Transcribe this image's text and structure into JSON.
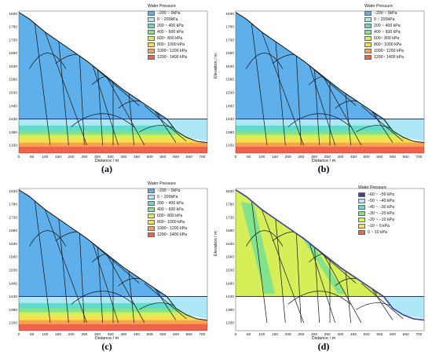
{
  "figure": {
    "panels": [
      {
        "caption": "(a)",
        "legend_title": "Water Pressure",
        "variant": "pressure",
        "xlabel": "Distance / m",
        "ylabel": "Elevation / m"
      },
      {
        "caption": "(b)",
        "legend_title": "Water Pressure",
        "variant": "pressure",
        "xlabel": "Distance / m",
        "ylabel": "Elevation / m"
      },
      {
        "caption": "(c)",
        "legend_title": "Water Pressure",
        "variant": "pressure",
        "xlabel": "Distance / m",
        "ylabel": "Elevation / m"
      },
      {
        "caption": "(d)",
        "legend_title": "Water Pressure",
        "variant": "suction",
        "xlabel": "Distance / m",
        "ylabel": "Elevation / m"
      }
    ]
  },
  "legends": {
    "pressure_abc": [
      {
        "label": "−200 ~ 0kPa",
        "color": "#5fb0ea"
      },
      {
        "label": "0 ~ 200kPa",
        "color": "#aee7f5"
      },
      {
        "label": "200 ~ 400 kPa",
        "color": "#5fdccd"
      },
      {
        "label": "400 ~ 600 kPa",
        "color": "#83e28b"
      },
      {
        "label": "600~ 800 kPa",
        "color": "#d6ee57"
      },
      {
        "label": "800~ 1000 kPa",
        "color": "#f8e04a"
      },
      {
        "label": "1000~ 1200 kPa",
        "color": "#f8a24d"
      },
      {
        "label": "1200~ 1400 kPa",
        "color": "#f0624b"
      }
    ],
    "suction_d": [
      {
        "label": "−60 ~ −50 kPa",
        "color": "#3c3f9e"
      },
      {
        "label": "−50 ~ −40 kPa",
        "color": "#aee7f5"
      },
      {
        "label": "−40 ~ −30 kPa",
        "color": "#5fdccd"
      },
      {
        "label": "−30 ~ −20 kPa",
        "color": "#83e28b"
      },
      {
        "label": "−20 ~ −10 kPa",
        "color": "#d6ee57"
      },
      {
        "label": "−10 ~ 0 kPa",
        "color": "#f8e04a"
      },
      {
        "label": "0 ~ 10 kPa",
        "color": "#f0624b"
      }
    ]
  },
  "axes": {
    "x_ticks": [
      0,
      50,
      100,
      150,
      200,
      250,
      300,
      350,
      400,
      450,
      500,
      550,
      600,
      650,
      700
    ],
    "y_ticks": [
      1330,
      1380,
      1430,
      1480,
      1530,
      1580,
      1630,
      1680,
      1730,
      1780,
      1830
    ],
    "xlim": [
      0,
      720
    ],
    "ylim": [
      1300,
      1840
    ]
  }
}
